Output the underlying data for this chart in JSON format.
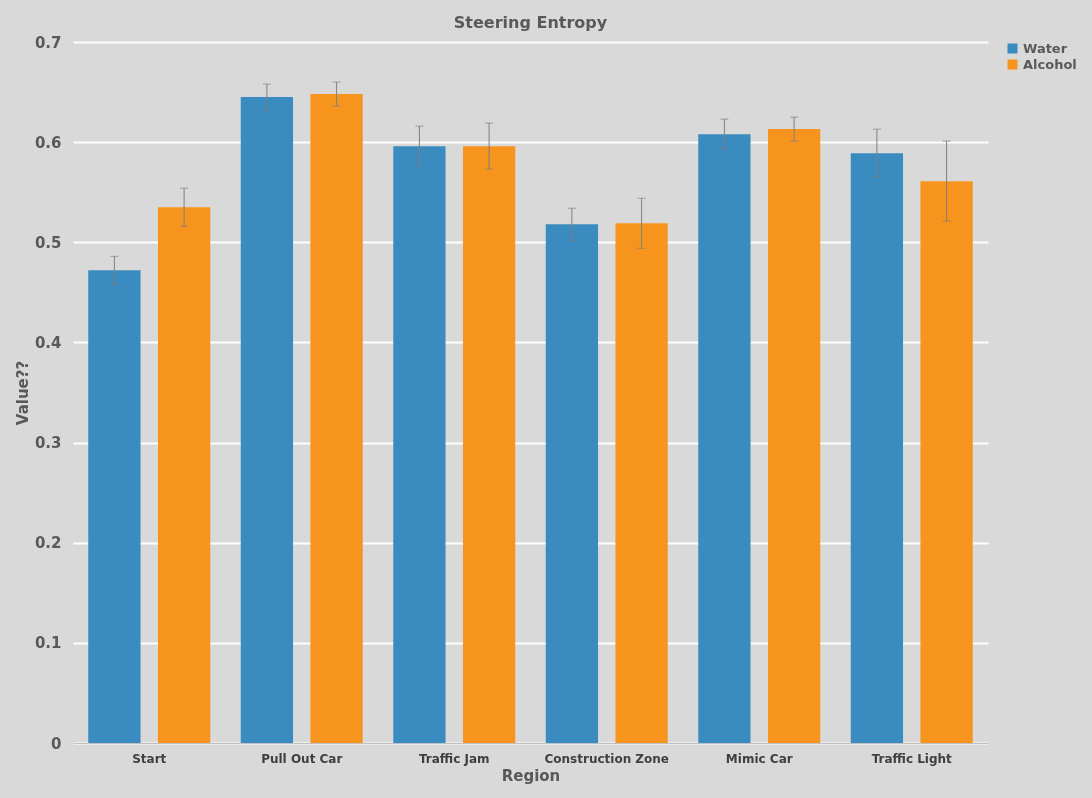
{
  "chart_data": {
    "type": "bar",
    "title": "Steering Entropy",
    "xlabel": "Region",
    "ylabel": "Value??",
    "categories": [
      "Start",
      "Pull Out Car",
      "Traffic Jam",
      "Construction Zone",
      "Mimic Car",
      "Traffic Light"
    ],
    "series": [
      {
        "name": "Water",
        "color": "#3a8bbf",
        "values": [
          0.472,
          0.645,
          0.596,
          0.518,
          0.608,
          0.589
        ],
        "errors": [
          0.014,
          0.013,
          0.02,
          0.016,
          0.015,
          0.024
        ]
      },
      {
        "name": "Alcohol",
        "color": "#f7941d",
        "values": [
          0.535,
          0.648,
          0.596,
          0.519,
          0.613,
          0.561
        ],
        "errors": [
          0.019,
          0.012,
          0.023,
          0.025,
          0.012,
          0.04
        ]
      }
    ],
    "ylim": [
      0,
      0.7
    ],
    "yticks": [
      0,
      0.1,
      0.2,
      0.3,
      0.4,
      0.5,
      0.6,
      0.7
    ],
    "grid": "y",
    "legend": "right"
  }
}
